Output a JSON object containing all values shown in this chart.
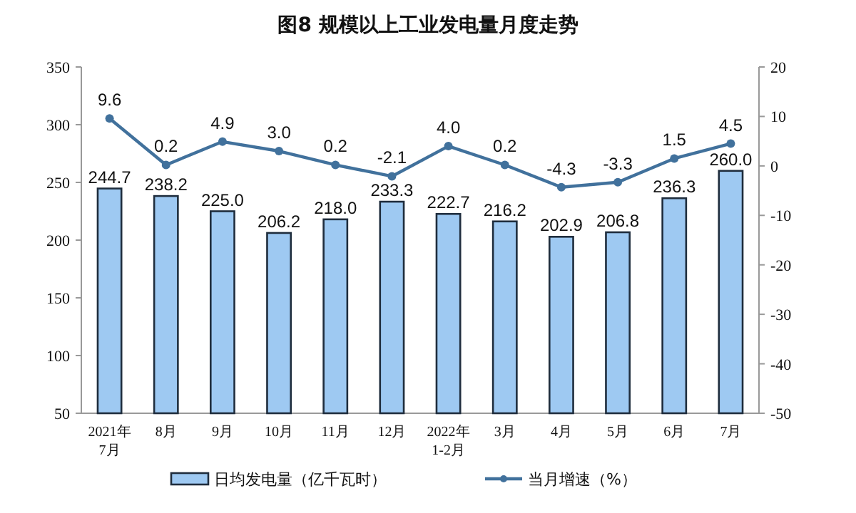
{
  "chart_data": {
    "type": "bar",
    "title": "图8  规模以上工业发电量月度走势",
    "categories": [
      "2021年\n7月",
      "8月",
      "9月",
      "10月",
      "11月",
      "12月",
      "2022年\n1-2月",
      "3月",
      "4月",
      "5月",
      "6月",
      "7月"
    ],
    "series": [
      {
        "name": "日均发电量（亿千瓦时）",
        "color": "#9ec9f2",
        "values": [
          244.7,
          238.2,
          225.0,
          206.2,
          218.0,
          233.3,
          222.7,
          216.2,
          202.9,
          206.8,
          236.3,
          260.0
        ],
        "value_labels": [
          "244.7",
          "238.2",
          "225.0",
          "206.2",
          "218.0",
          "233.3",
          "222.7",
          "216.2",
          "202.9",
          "206.8",
          "236.3",
          "260.0"
        ]
      },
      {
        "name": "当月增速（%）",
        "type": "line",
        "axis": "y2",
        "color": "#41719c",
        "marker": "circle",
        "values": [
          9.6,
          0.2,
          4.9,
          3.0,
          0.2,
          -2.1,
          4.0,
          0.2,
          -4.3,
          -3.3,
          1.5,
          4.5
        ],
        "value_labels": [
          "9.6",
          "0.2",
          "4.9",
          "3.0",
          "0.2",
          "-2.1",
          "4.0",
          "0.2",
          "-4.3",
          "-3.3",
          "1.5",
          "4.5"
        ]
      }
    ],
    "ylim": [
      50,
      350
    ],
    "yticks": [
      50,
      100,
      150,
      200,
      250,
      300,
      350
    ],
    "y2lim": [
      -50,
      20
    ],
    "y2ticks": [
      -50,
      -40,
      -30,
      -20,
      -10,
      0,
      10,
      20
    ],
    "legend": "bottom",
    "grid": false
  }
}
